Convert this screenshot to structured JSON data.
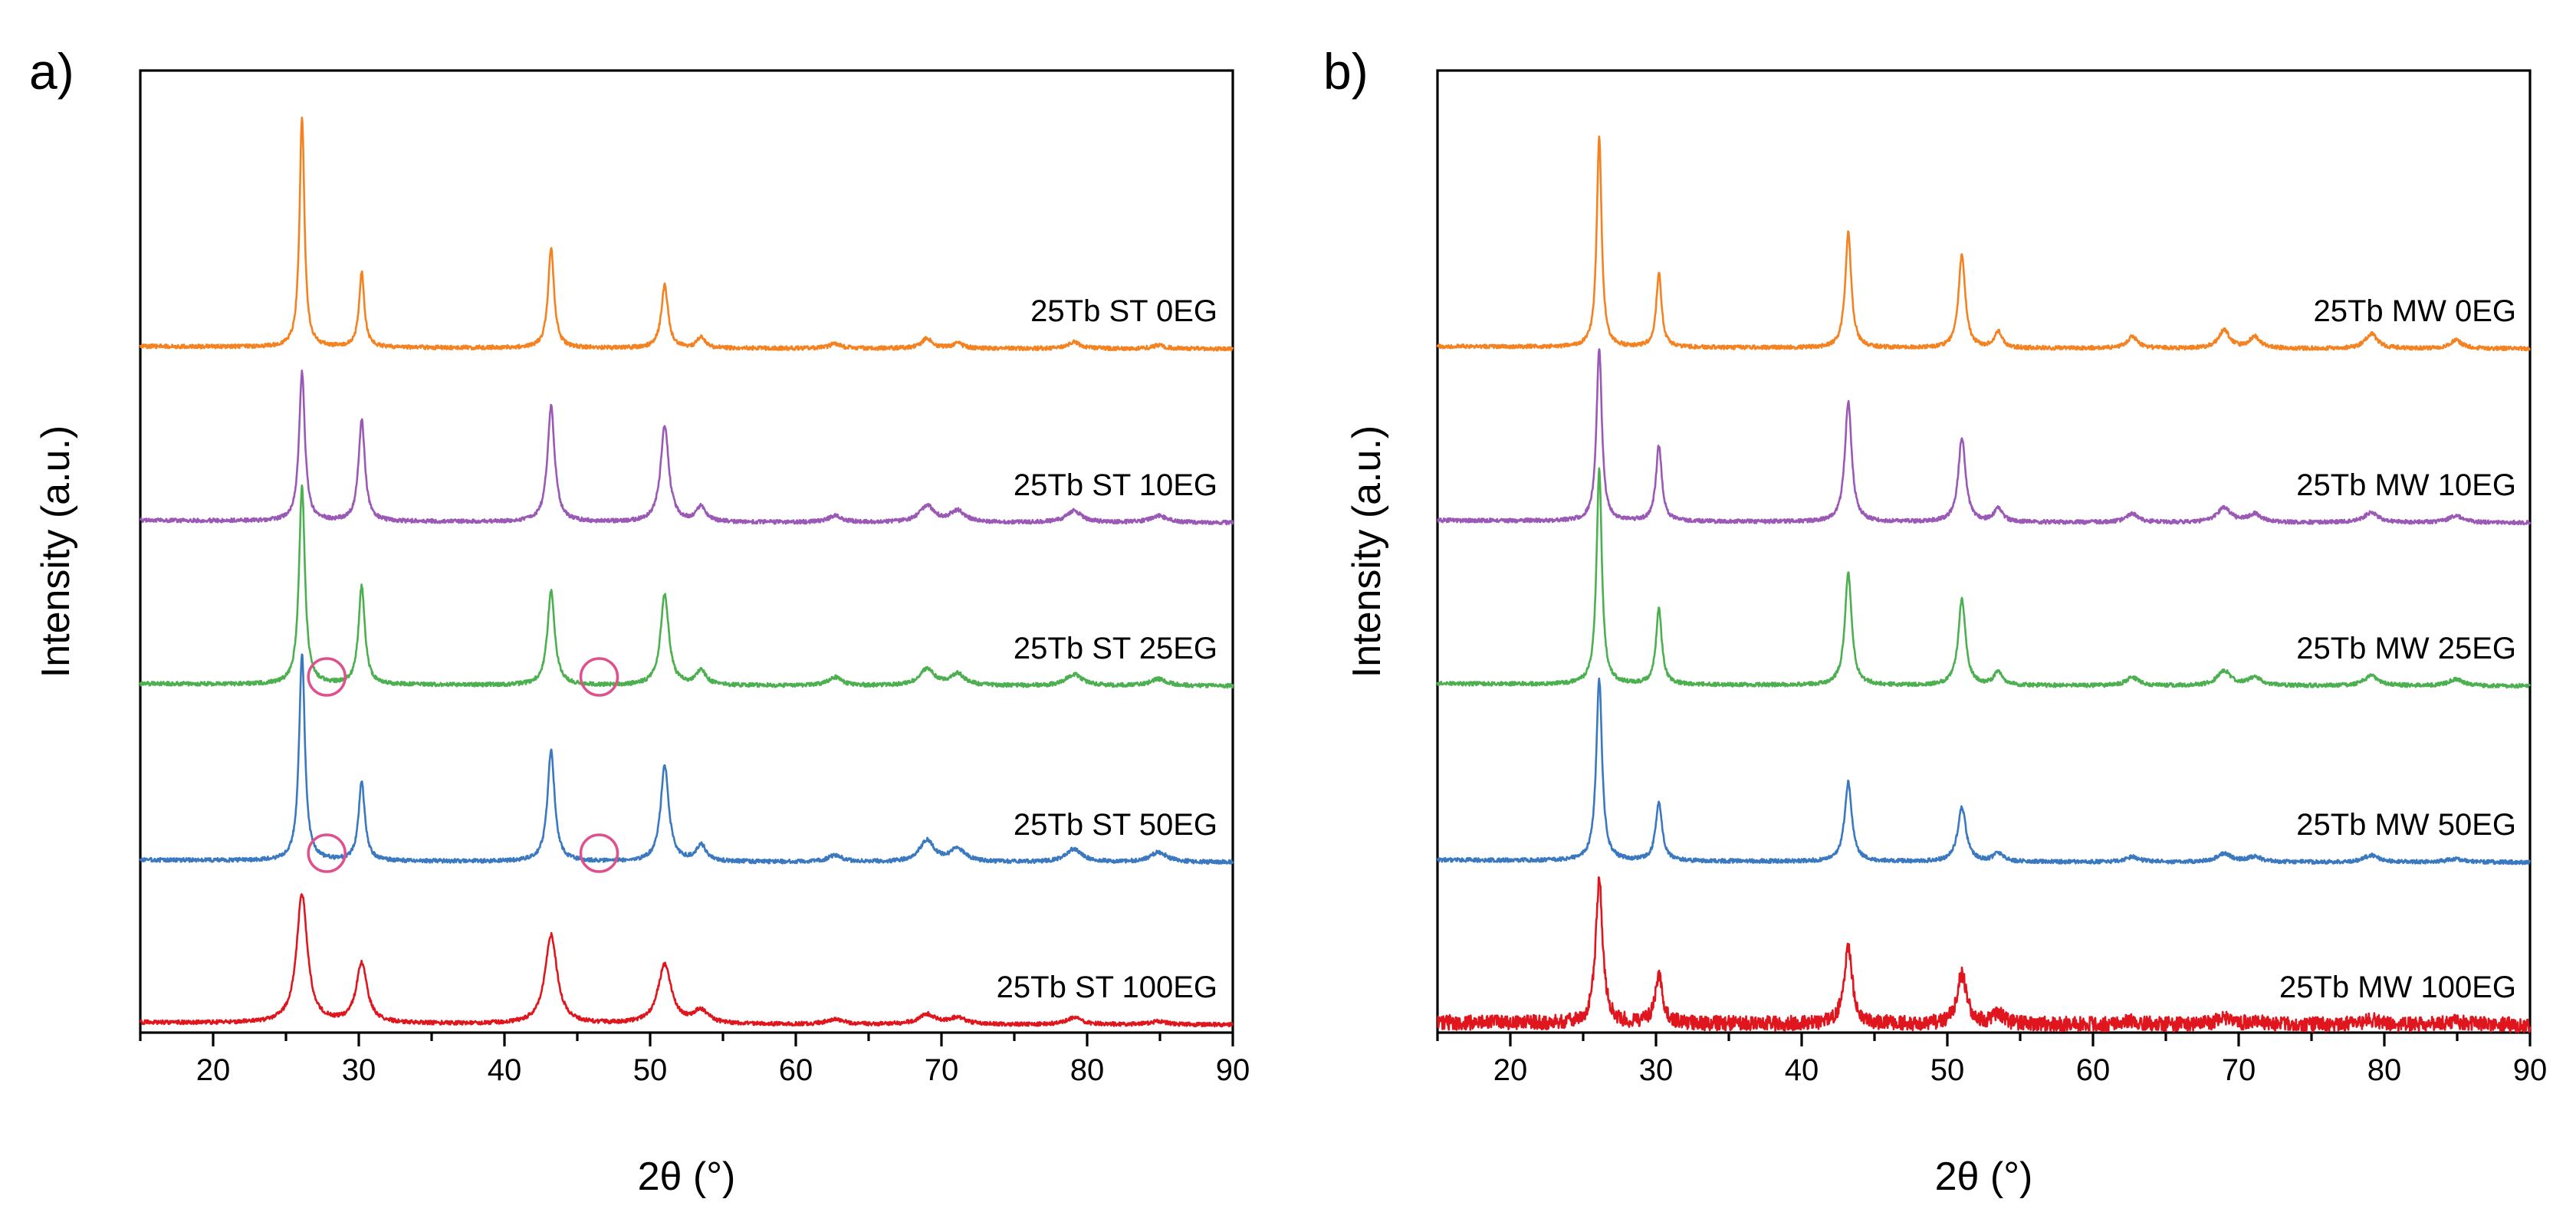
{
  "colors": {
    "0EG": "#f58220",
    "10EG": "#9b59b6",
    "25EG": "#4caf50",
    "50EG": "#3a78c0",
    "100EG": "#e0161e",
    "marker": "#e0508c"
  },
  "chart_data": [
    {
      "panel_label": "a)",
      "type": "line",
      "xlabel": "2θ (°)",
      "ylabel": "Intensity (a.u.)",
      "xlim": [
        15,
        90
      ],
      "x_ticks": [
        20,
        30,
        40,
        50,
        60,
        70,
        80,
        90
      ],
      "y_ticks_visible": false,
      "grid": false,
      "peaks_2theta": [
        26.1,
        30.2,
        43.2,
        51.0,
        53.5,
        62.7,
        69.0,
        71.1,
        79.1,
        84.9
      ],
      "series": [
        {
          "name": "25Tb ST 0EG",
          "color_key": "0EG",
          "offset": 4,
          "noise": 0.012,
          "heights": [
            1.4,
            0.45,
            0.6,
            0.38,
            0.07,
            0.03,
            0.06,
            0.03,
            0.04,
            0.02
          ],
          "widths": [
            0.2,
            0.22,
            0.25,
            0.28,
            0.3,
            0.45,
            0.45,
            0.45,
            0.5,
            0.5
          ]
        },
        {
          "name": "25Tb ST 10EG",
          "color_key": "10EG",
          "offset": 3,
          "noise": 0.012,
          "heights": [
            0.9,
            0.62,
            0.7,
            0.58,
            0.09,
            0.04,
            0.1,
            0.07,
            0.07,
            0.04
          ],
          "widths": [
            0.24,
            0.26,
            0.3,
            0.34,
            0.4,
            0.55,
            0.6,
            0.6,
            0.65,
            0.7
          ]
        },
        {
          "name": "25Tb ST 25EG",
          "color_key": "25EG",
          "offset": 2,
          "noise": 0.012,
          "heights": [
            1.2,
            0.6,
            0.57,
            0.55,
            0.09,
            0.05,
            0.1,
            0.07,
            0.07,
            0.04
          ],
          "widths": [
            0.24,
            0.26,
            0.3,
            0.34,
            0.4,
            0.55,
            0.6,
            0.6,
            0.65,
            0.7
          ]
        },
        {
          "name": "25Tb ST 50EG",
          "color_key": "50EG",
          "offset": 1,
          "noise": 0.012,
          "heights": [
            1.25,
            0.48,
            0.67,
            0.58,
            0.1,
            0.04,
            0.13,
            0.08,
            0.08,
            0.06
          ],
          "widths": [
            0.24,
            0.26,
            0.3,
            0.34,
            0.4,
            0.55,
            0.6,
            0.6,
            0.65,
            0.7
          ]
        },
        {
          "name": "25Tb ST 100EG",
          "color_key": "100EG",
          "offset": 0,
          "noise": 0.012,
          "heights": [
            0.78,
            0.36,
            0.54,
            0.36,
            0.08,
            0.03,
            0.06,
            0.04,
            0.04,
            0.02
          ],
          "widths": [
            0.45,
            0.45,
            0.5,
            0.55,
            0.6,
            0.7,
            0.7,
            0.7,
            0.7,
            0.7
          ]
        }
      ],
      "markers_2theta": [
        {
          "series": "25Tb ST 25EG",
          "x": 27.8
        },
        {
          "series": "25Tb ST 25EG",
          "x": 46.5
        },
        {
          "series": "25Tb ST 50EG",
          "x": 27.8
        },
        {
          "series": "25Tb ST 50EG",
          "x": 46.5
        }
      ]
    },
    {
      "panel_label": "b)",
      "type": "line",
      "xlabel": "2θ (°)",
      "ylabel": "Intensity (a.u.)",
      "xlim": [
        15,
        90
      ],
      "x_ticks": [
        20,
        30,
        40,
        50,
        60,
        70,
        80,
        90
      ],
      "y_ticks_visible": false,
      "grid": false,
      "peaks_2theta": [
        26.1,
        30.2,
        43.2,
        51.0,
        53.5,
        62.7,
        69.0,
        71.1,
        79.1,
        84.9
      ],
      "series": [
        {
          "name": "25Tb MW 0EG",
          "color_key": "0EG",
          "offset": 4,
          "noise": 0.012,
          "heights": [
            1.28,
            0.45,
            0.7,
            0.56,
            0.1,
            0.07,
            0.11,
            0.07,
            0.09,
            0.05
          ],
          "widths": [
            0.2,
            0.22,
            0.25,
            0.28,
            0.3,
            0.45,
            0.45,
            0.45,
            0.5,
            0.5
          ]
        },
        {
          "name": "25Tb MW 10EG",
          "color_key": "10EG",
          "offset": 3,
          "noise": 0.012,
          "heights": [
            1.05,
            0.46,
            0.73,
            0.51,
            0.08,
            0.05,
            0.09,
            0.05,
            0.06,
            0.04
          ],
          "widths": [
            0.22,
            0.24,
            0.28,
            0.3,
            0.35,
            0.5,
            0.55,
            0.55,
            0.6,
            0.6
          ]
        },
        {
          "name": "25Tb MW 25EG",
          "color_key": "25EG",
          "offset": 2,
          "noise": 0.012,
          "heights": [
            1.3,
            0.46,
            0.68,
            0.52,
            0.08,
            0.05,
            0.09,
            0.05,
            0.06,
            0.04
          ],
          "widths": [
            0.22,
            0.24,
            0.28,
            0.3,
            0.35,
            0.5,
            0.55,
            0.55,
            0.6,
            0.6
          ]
        },
        {
          "name": "25Tb MW 50EG",
          "color_key": "50EG",
          "offset": 1,
          "noise": 0.012,
          "heights": [
            1.1,
            0.36,
            0.48,
            0.33,
            0.05,
            0.03,
            0.05,
            0.03,
            0.04,
            0.02
          ],
          "widths": [
            0.24,
            0.26,
            0.3,
            0.34,
            0.4,
            0.55,
            0.6,
            0.6,
            0.65,
            0.7
          ]
        },
        {
          "name": "25Tb MW 100EG",
          "color_key": "100EG",
          "offset": 0,
          "noise": 0.045,
          "heights": [
            0.88,
            0.3,
            0.45,
            0.3,
            0.06,
            0.02,
            0.04,
            0.02,
            0.03,
            0.02
          ],
          "widths": [
            0.28,
            0.3,
            0.35,
            0.4,
            0.45,
            0.6,
            0.6,
            0.6,
            0.65,
            0.7
          ]
        }
      ],
      "markers_2theta": []
    }
  ]
}
